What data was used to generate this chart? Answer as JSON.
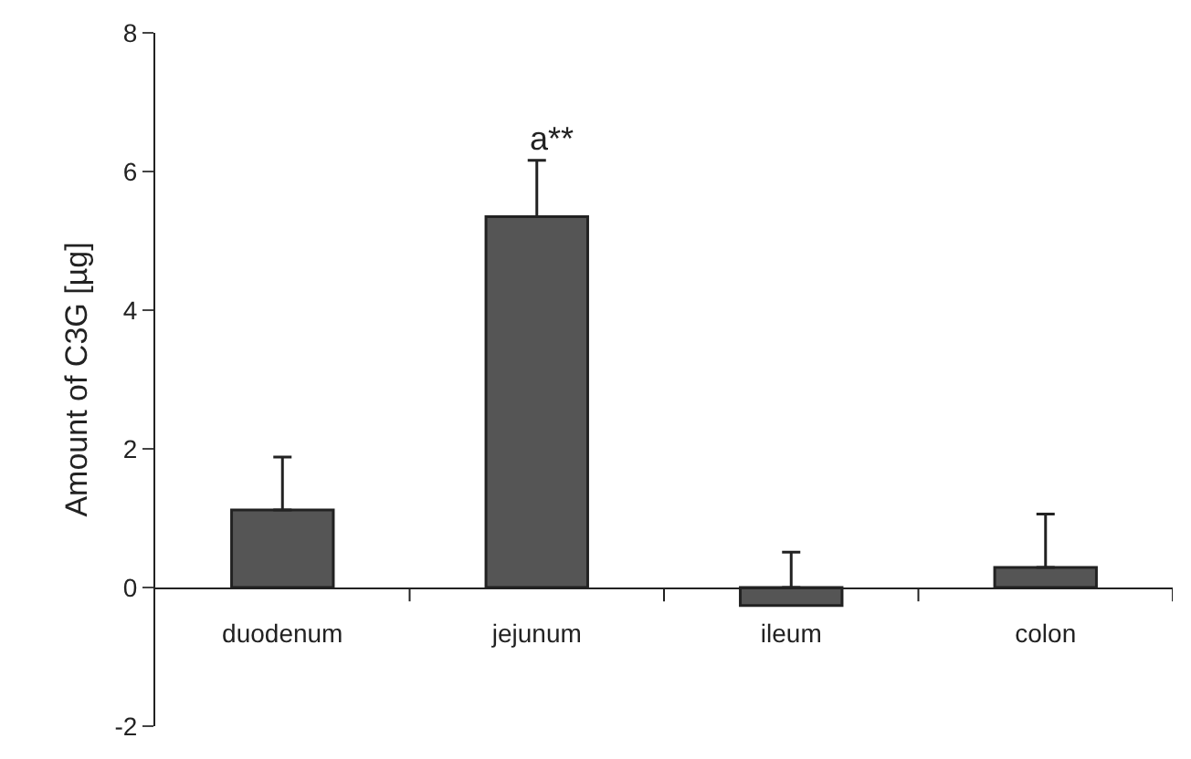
{
  "chart_data": {
    "type": "bar",
    "ylabel": "Amount of C3G [µg]",
    "categories": [
      "duodenum",
      "jejunum",
      "ileum",
      "colon"
    ],
    "values": [
      1.12,
      5.35,
      -0.26,
      0.29
    ],
    "errors": [
      [
        1.12,
        1.88
      ],
      [
        5.35,
        6.16
      ],
      [
        0,
        0.51
      ],
      [
        0.29,
        1.06
      ]
    ],
    "color": "#555555",
    "ylim": [
      -2,
      8
    ],
    "yticks": [
      -2,
      0,
      2,
      4,
      6,
      8
    ],
    "annotations": [
      "a**"
    ]
  }
}
